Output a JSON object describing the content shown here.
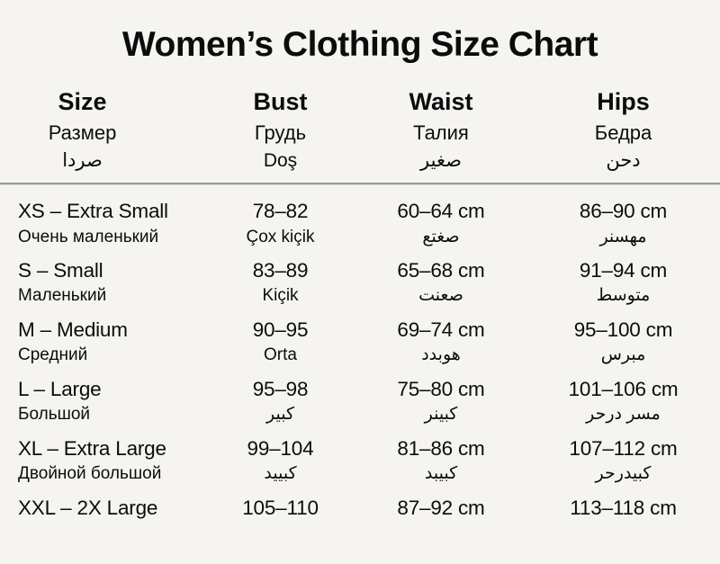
{
  "title": "Women’s Clothing Size Chart",
  "colors": {
    "background": "#f5f4f1",
    "text": "#0c0c0c",
    "divider": "#9a9a98"
  },
  "chart_data": {
    "type": "table",
    "title": "Women’s Clothing Size Chart",
    "columns": [
      {
        "en": "Size",
        "ru": "Размер",
        "l3": "صردا"
      },
      {
        "en": "Bust",
        "ru": "Грудь",
        "l3": "Doş"
      },
      {
        "en": "Waist",
        "ru": "Талия",
        "l3": "صغير"
      },
      {
        "en": "Hips",
        "ru": "Бедра",
        "l3": "دحن"
      }
    ],
    "rows": [
      {
        "size": "XS – Extra Small",
        "size_sub": "Очень маленький",
        "bust": "78–82",
        "bust_sub": "Çox kiçik",
        "waist": "60–64 cm",
        "waist_sub": "صغتع",
        "hips": "86–90 cm",
        "hips_sub": "مهسنر"
      },
      {
        "size": "S – Small",
        "size_sub": "Маленький",
        "bust": "83–89",
        "bust_sub": "Kiçik",
        "waist": "65–68 cm",
        "waist_sub": "صعنت",
        "hips": "91–94 cm",
        "hips_sub": "متوسط"
      },
      {
        "size": "M – Medium",
        "size_sub": "Средний",
        "bust": "90–95",
        "bust_sub": "Orta",
        "waist": "69–74 cm",
        "waist_sub": "هوبدد",
        "hips": "95–100 cm",
        "hips_sub": "مبرس"
      },
      {
        "size": "L – Large",
        "size_sub": "Большой",
        "bust": "95–98",
        "bust_sub": "كبير",
        "waist": "75–80 cm",
        "waist_sub": "كبينر",
        "hips": "101–106 cm",
        "hips_sub": "مسر درحر"
      },
      {
        "size": "XL – Extra Large",
        "size_sub": "Двойной большой",
        "bust": "99–104",
        "bust_sub": "كبييد",
        "waist": "81–86 cm",
        "waist_sub": "كبيبد",
        "hips": "107–112 cm",
        "hips_sub": "كبيدرحر"
      },
      {
        "size": "XXL – 2X Large",
        "size_sub": "",
        "bust": "105–110",
        "bust_sub": "",
        "waist": "87–92 cm",
        "waist_sub": "",
        "hips": "113–118 cm",
        "hips_sub": ""
      }
    ]
  }
}
